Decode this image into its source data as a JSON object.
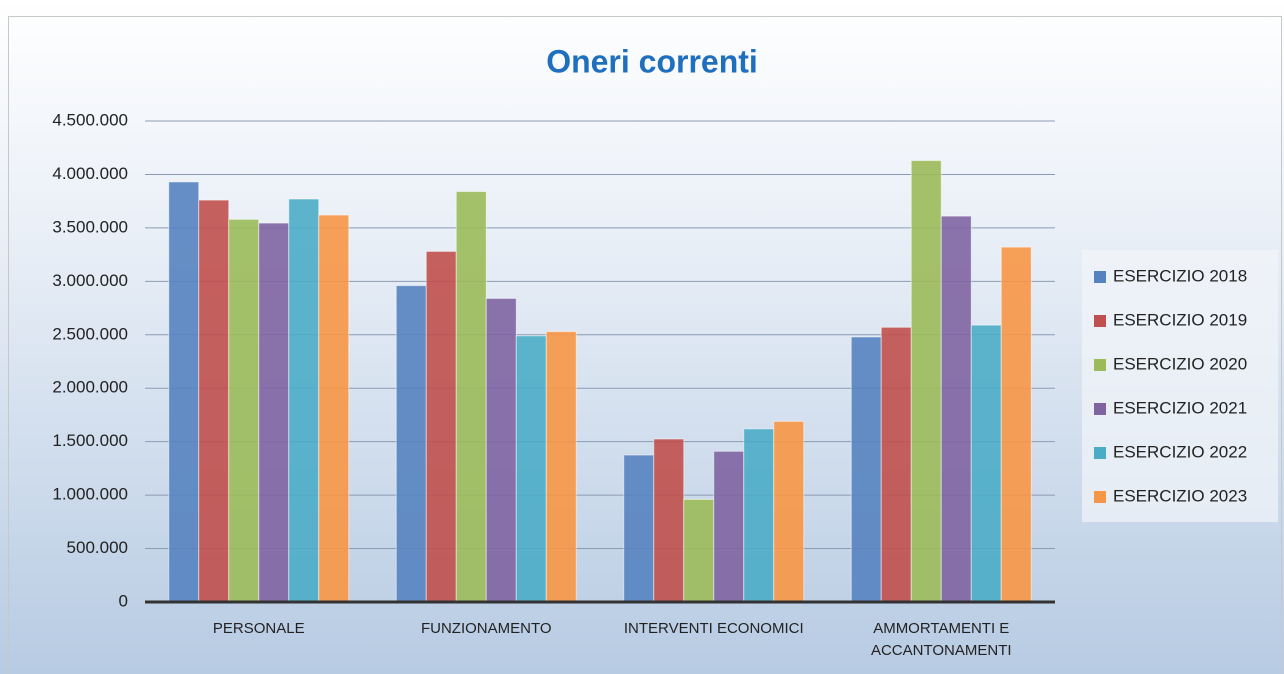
{
  "chart_data": {
    "type": "bar",
    "title": "Oneri correnti",
    "categories": [
      "PERSONALE",
      "FUNZIONAMENTO",
      "INTERVENTI ECONOMICI",
      "AMMORTAMENTI E ACCANTONAMENTI"
    ],
    "series": [
      {
        "name": "ESERCIZIO 2018",
        "color": "#5683c0",
        "values": [
          3930000,
          2960000,
          1375000,
          2480000
        ]
      },
      {
        "name": "ESERCIZIO 2019",
        "color": "#c0504d",
        "values": [
          3760000,
          3280000,
          1525000,
          2570000
        ]
      },
      {
        "name": "ESERCIZIO 2020",
        "color": "#9bbb59",
        "values": [
          3580000,
          3840000,
          960000,
          4130000
        ]
      },
      {
        "name": "ESERCIZIO 2021",
        "color": "#8064a2",
        "values": [
          3545000,
          2840000,
          1410000,
          3610000
        ]
      },
      {
        "name": "ESERCIZIO 2022",
        "color": "#4bacc6",
        "values": [
          3770000,
          2490000,
          1620000,
          2590000
        ]
      },
      {
        "name": "ESERCIZIO 2023",
        "color": "#f79646",
        "values": [
          3620000,
          2530000,
          1690000,
          3320000
        ]
      }
    ],
    "ylim": [
      0,
      4500000
    ],
    "yticks": [
      0,
      {
        "value": 500000,
        "label": "500.000"
      },
      {
        "value": 1000000,
        "label": "1.000.000"
      },
      {
        "value": 1500000,
        "label": "1.500.000"
      },
      {
        "value": 2000000,
        "label": "2.000.000"
      },
      {
        "value": 2500000,
        "label": "2.500.000"
      },
      {
        "value": 3000000,
        "label": "3.000.000"
      },
      {
        "value": 3500000,
        "label": "3.500.000"
      },
      {
        "value": 4000000,
        "label": "4.000.000"
      },
      {
        "value": 4500000,
        "label": "4.500.000"
      }
    ],
    "grid": true,
    "legend": "right"
  }
}
